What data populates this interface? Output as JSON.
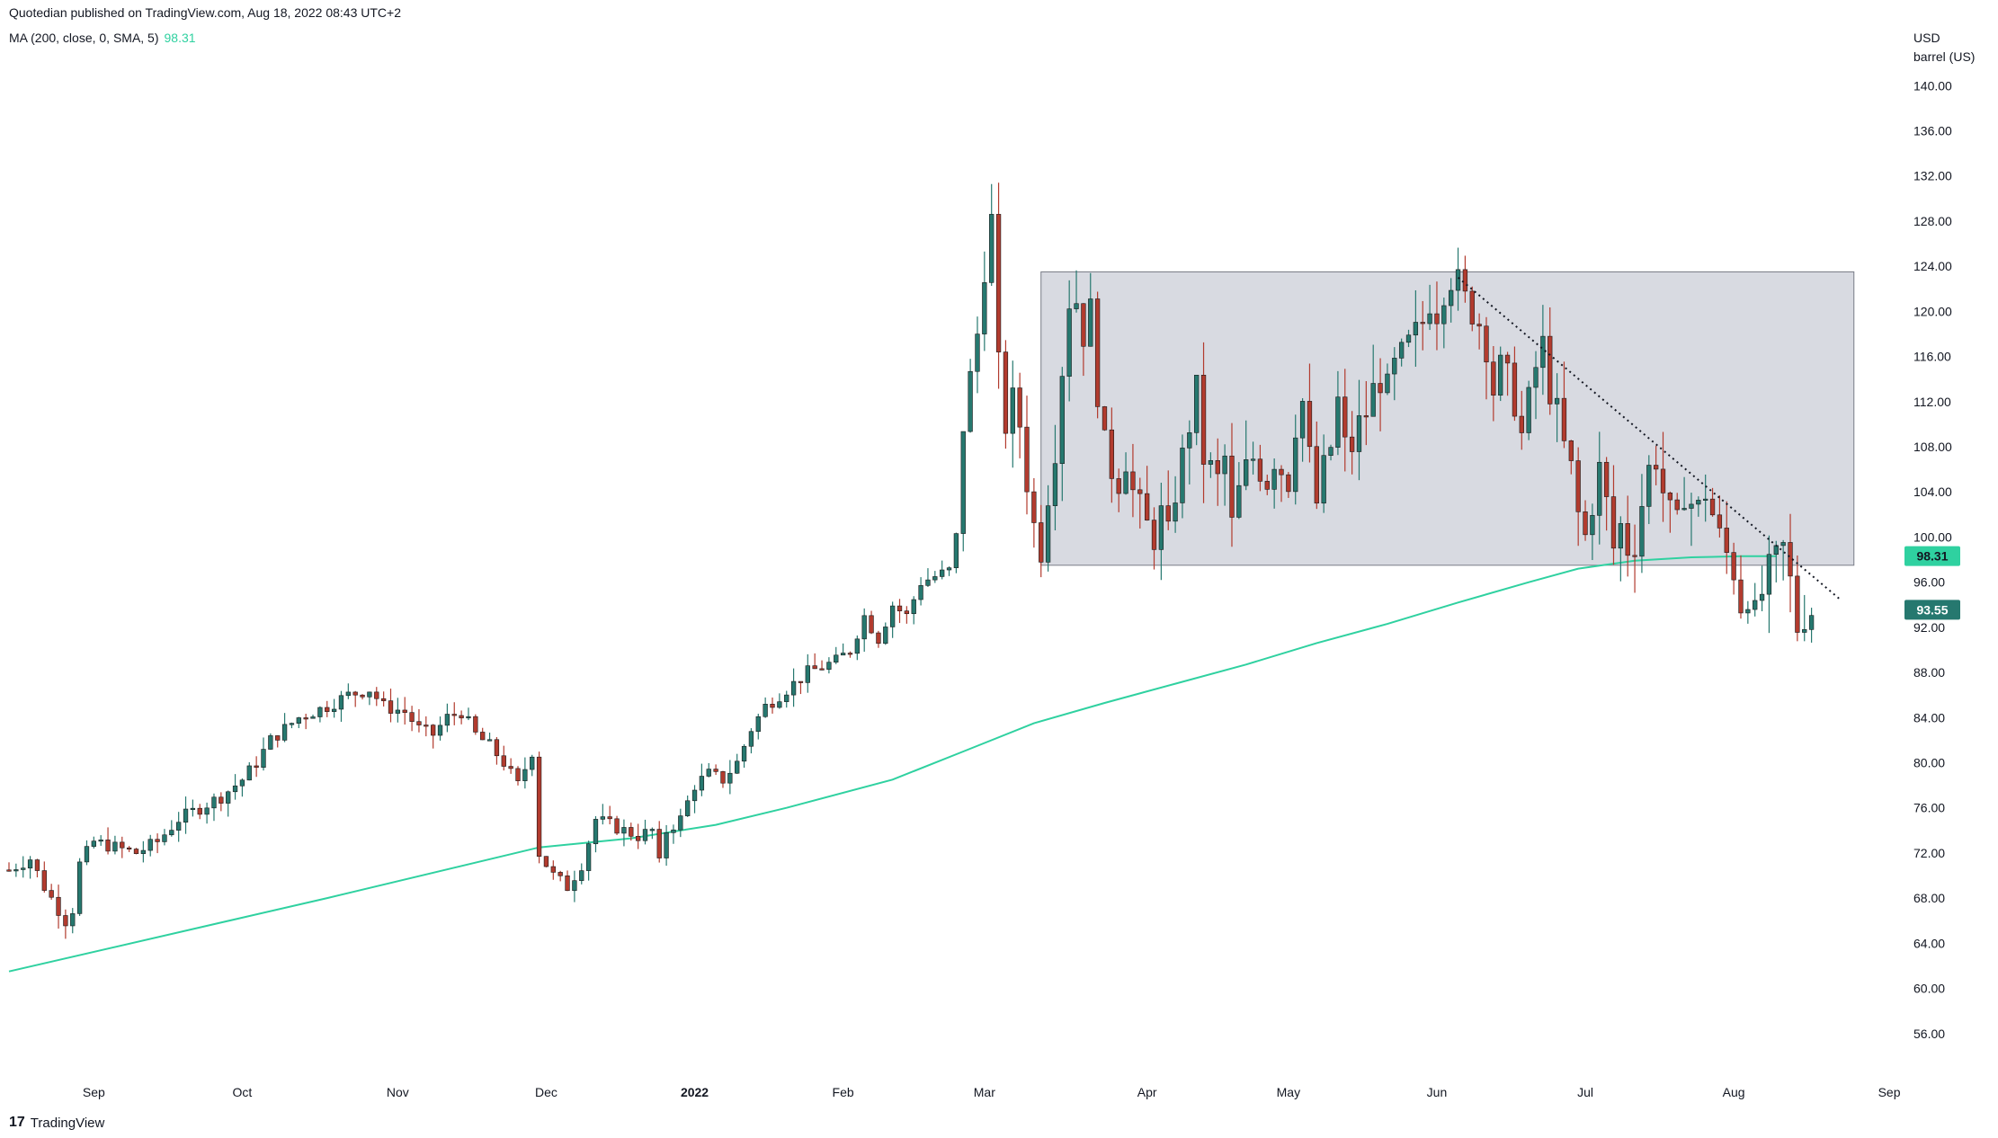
{
  "header": {
    "published": "Quotedian published on TradingView.com, Aug 18, 2022 08:43 UTC+2",
    "indicator_label": "MA (200, close, 0, SMA, 5)",
    "indicator_value": "98.31"
  },
  "axis_unit": {
    "currency": "USD",
    "unit": "barrel (US)"
  },
  "footer": {
    "logo_glyph": "17",
    "brand": "TradingView"
  },
  "colors": {
    "up": "#26786f",
    "down": "#b23b2e",
    "ma": "#2fd1a0",
    "box": "#d1d4dc",
    "badge_last": "#26786f",
    "badge_ma": "#2fd1a0"
  },
  "chart_data": {
    "type": "candlestick",
    "title": "",
    "ylim": [
      52,
      146
    ],
    "y_ticks": [
      "140.00",
      "136.00",
      "132.00",
      "128.00",
      "124.00",
      "120.00",
      "116.00",
      "112.00",
      "108.00",
      "104.00",
      "100.00",
      "96.00",
      "92.00",
      "88.00",
      "84.00",
      "80.00",
      "76.00",
      "72.00",
      "68.00",
      "64.00",
      "60.00",
      "56.00"
    ],
    "x_ticks": [
      {
        "label": "Sep",
        "index": 12
      },
      {
        "label": "Oct",
        "index": 33
      },
      {
        "label": "Nov",
        "index": 55
      },
      {
        "label": "Dec",
        "index": 76
      },
      {
        "label": "2022",
        "index": 97,
        "bold": true
      },
      {
        "label": "Feb",
        "index": 118
      },
      {
        "label": "Mar",
        "index": 138
      },
      {
        "label": "Apr",
        "index": 161
      },
      {
        "label": "May",
        "index": 181
      },
      {
        "label": "Jun",
        "index": 202
      },
      {
        "label": "Jul",
        "index": 223
      },
      {
        "label": "Aug",
        "index": 244
      },
      {
        "label": "Sep",
        "index": 266
      }
    ],
    "x_index_range": [
      0,
      266.5
    ],
    "price_anchors": [
      [
        0,
        70.5
      ],
      [
        3,
        71.5
      ],
      [
        5,
        69
      ],
      [
        7,
        67
      ],
      [
        8,
        66
      ],
      [
        9,
        67
      ],
      [
        10,
        71
      ],
      [
        12,
        73
      ],
      [
        15,
        72.5
      ],
      [
        18,
        72
      ],
      [
        21,
        73
      ],
      [
        24,
        75
      ],
      [
        27,
        76
      ],
      [
        30,
        77
      ],
      [
        33,
        78.5
      ],
      [
        35,
        80
      ],
      [
        37,
        82
      ],
      [
        39,
        83
      ],
      [
        41,
        84
      ],
      [
        43,
        84.5
      ],
      [
        45,
        85
      ],
      [
        48,
        86
      ],
      [
        51,
        86.5
      ],
      [
        53,
        85
      ],
      [
        56,
        84.5
      ],
      [
        58,
        83
      ],
      [
        60,
        82.5
      ],
      [
        62,
        84
      ],
      [
        64,
        84.5
      ],
      [
        66,
        82.5
      ],
      [
        68,
        81.5
      ],
      [
        70,
        80
      ],
      [
        72,
        78
      ],
      [
        74,
        81
      ],
      [
        75,
        72
      ],
      [
        77,
        70
      ],
      [
        79,
        69
      ],
      [
        81,
        71
      ],
      [
        83,
        75
      ],
      [
        85,
        74.5
      ],
      [
        87,
        74
      ],
      [
        89,
        73.5
      ],
      [
        91,
        74
      ],
      [
        92,
        71
      ],
      [
        93,
        74
      ],
      [
        95,
        75
      ],
      [
        97,
        78
      ],
      [
        99,
        79
      ],
      [
        101,
        78.5
      ],
      [
        103,
        80
      ],
      [
        105,
        83
      ],
      [
        107,
        85
      ],
      [
        109,
        86
      ],
      [
        111,
        87
      ],
      [
        113,
        88
      ],
      [
        115,
        88.5
      ],
      [
        117,
        89
      ],
      [
        119,
        90
      ],
      [
        121,
        93
      ],
      [
        123,
        91
      ],
      [
        125,
        94
      ],
      [
        127,
        93
      ],
      [
        129,
        96
      ],
      [
        131,
        96.5
      ],
      [
        133,
        97
      ],
      [
        134,
        100
      ],
      [
        135,
        110
      ],
      [
        136,
        114
      ],
      [
        137,
        118
      ],
      [
        138,
        124
      ],
      [
        139,
        128
      ],
      [
        140,
        115
      ],
      [
        141,
        110
      ],
      [
        142,
        112
      ],
      [
        143,
        110
      ],
      [
        144,
        105
      ],
      [
        145,
        101
      ],
      [
        146,
        99
      ],
      [
        147,
        104
      ],
      [
        148,
        108
      ],
      [
        149,
        115
      ],
      [
        150,
        121
      ],
      [
        151,
        121
      ],
      [
        152,
        118
      ],
      [
        153,
        120
      ],
      [
        154,
        113
      ],
      [
        155,
        108
      ],
      [
        156,
        106
      ],
      [
        157,
        105
      ],
      [
        158,
        107
      ],
      [
        159,
        104
      ],
      [
        161,
        101
      ],
      [
        162,
        100
      ],
      [
        163,
        102
      ],
      [
        164,
        100
      ],
      [
        165,
        104
      ],
      [
        166,
        107
      ],
      [
        167,
        110
      ],
      [
        168,
        113
      ],
      [
        169,
        107
      ],
      [
        170,
        106
      ],
      [
        171,
        105
      ],
      [
        172,
        107
      ],
      [
        173,
        101
      ],
      [
        174,
        104
      ],
      [
        175,
        106
      ],
      [
        176,
        107
      ],
      [
        177,
        106
      ],
      [
        178,
        105
      ],
      [
        179,
        107
      ],
      [
        180,
        106
      ],
      [
        181,
        105
      ],
      [
        182,
        110
      ],
      [
        183,
        112
      ],
      [
        184,
        107
      ],
      [
        185,
        103
      ],
      [
        186,
        106
      ],
      [
        187,
        108
      ],
      [
        188,
        112
      ],
      [
        189,
        108
      ],
      [
        190,
        108
      ],
      [
        191,
        110
      ],
      [
        192,
        111
      ],
      [
        193,
        113
      ],
      [
        194,
        114
      ],
      [
        195,
        113
      ],
      [
        196,
        115
      ],
      [
        197,
        116
      ],
      [
        198,
        117
      ],
      [
        199,
        118
      ],
      [
        200,
        119
      ],
      [
        201,
        121
      ],
      [
        202,
        120
      ],
      [
        203,
        122
      ],
      [
        204,
        123
      ],
      [
        205,
        122.5
      ],
      [
        206,
        121
      ],
      [
        207,
        120
      ],
      [
        208,
        119
      ],
      [
        209,
        117
      ],
      [
        210,
        113
      ],
      [
        211,
        115
      ],
      [
        212,
        114
      ],
      [
        213,
        112
      ],
      [
        214,
        109
      ],
      [
        215,
        112
      ],
      [
        216,
        115
      ],
      [
        217,
        117
      ],
      [
        218,
        113
      ],
      [
        219,
        111
      ],
      [
        220,
        108
      ],
      [
        221,
        106
      ],
      [
        222,
        102
      ],
      [
        223,
        100
      ],
      [
        224,
        103
      ],
      [
        225,
        106
      ],
      [
        226,
        103
      ],
      [
        227,
        99
      ],
      [
        228,
        101
      ],
      [
        229,
        99
      ],
      [
        230,
        99.5
      ],
      [
        231,
        103
      ],
      [
        232,
        106
      ],
      [
        233,
        107
      ],
      [
        234,
        104
      ],
      [
        235,
        102
      ],
      [
        236,
        101
      ],
      [
        237,
        104
      ],
      [
        238,
        103
      ],
      [
        239,
        102.5
      ],
      [
        240,
        104
      ],
      [
        241,
        102
      ],
      [
        242,
        100
      ],
      [
        243,
        98.5
      ],
      [
        244,
        97
      ],
      [
        245,
        94
      ],
      [
        246,
        95
      ],
      [
        247,
        93
      ],
      [
        248,
        95
      ],
      [
        249,
        97
      ],
      [
        250,
        98
      ],
      [
        251,
        99
      ],
      [
        252,
        96
      ],
      [
        253,
        92
      ],
      [
        254,
        93
      ],
      [
        255,
        93.5
      ]
    ],
    "ma_200": [
      [
        0,
        61.5
      ],
      [
        45,
        68
      ],
      [
        75,
        72.5
      ],
      [
        88,
        73.3
      ],
      [
        100,
        74.5
      ],
      [
        110,
        76
      ],
      [
        125,
        78.5
      ],
      [
        135,
        81
      ],
      [
        145,
        83.5
      ],
      [
        155,
        85.3
      ],
      [
        165,
        87
      ],
      [
        175,
        88.7
      ],
      [
        185,
        90.6
      ],
      [
        195,
        92.3
      ],
      [
        205,
        94.2
      ],
      [
        215,
        96
      ],
      [
        222,
        97.2
      ],
      [
        230,
        97.9
      ],
      [
        238,
        98.2
      ],
      [
        245,
        98.3
      ],
      [
        250,
        98.31
      ]
    ],
    "range_box": {
      "x_start": 146,
      "x_end": 261,
      "top": 123.5,
      "bottom": 97.5
    },
    "trendline": {
      "x_start": 205,
      "y_start": 123,
      "x_end": 259,
      "y_end": 94.5,
      "style": "dotted"
    },
    "last_price": 93.55,
    "last_price_label": "93.55",
    "ma_last_label": "98.31"
  }
}
